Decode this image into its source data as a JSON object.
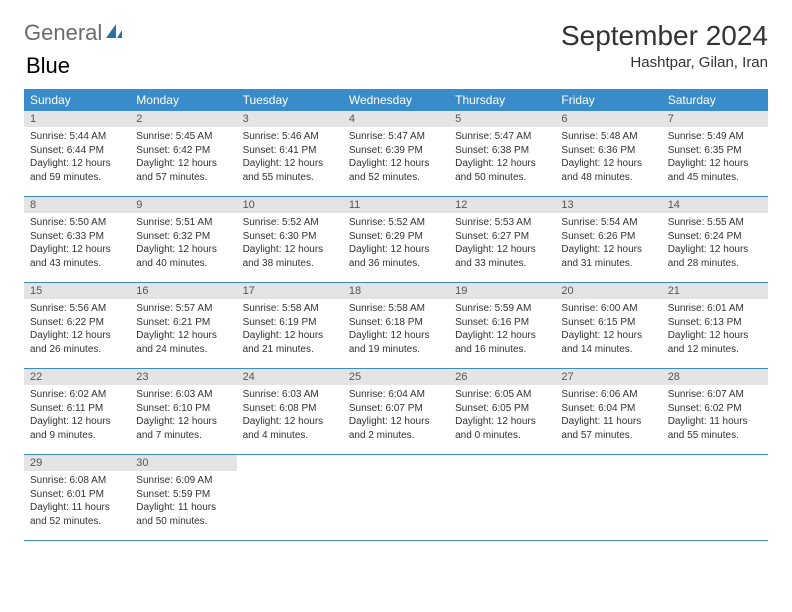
{
  "logo": {
    "word1": "General",
    "word2": "Blue"
  },
  "title": "September 2024",
  "location": "Hashtpar, Gilan, Iran",
  "colors": {
    "header_bg": "#3a8bc9",
    "header_text": "#ffffff",
    "daynum_bg": "#e4e4e4",
    "border": "#3a8bc9",
    "logo_gray": "#6b6b6b",
    "logo_blue": "#3a7fc4"
  },
  "weekdays": [
    "Sunday",
    "Monday",
    "Tuesday",
    "Wednesday",
    "Thursday",
    "Friday",
    "Saturday"
  ],
  "weeks": [
    [
      {
        "n": "1",
        "sr": "Sunrise: 5:44 AM",
        "ss": "Sunset: 6:44 PM",
        "d1": "Daylight: 12 hours",
        "d2": "and 59 minutes."
      },
      {
        "n": "2",
        "sr": "Sunrise: 5:45 AM",
        "ss": "Sunset: 6:42 PM",
        "d1": "Daylight: 12 hours",
        "d2": "and 57 minutes."
      },
      {
        "n": "3",
        "sr": "Sunrise: 5:46 AM",
        "ss": "Sunset: 6:41 PM",
        "d1": "Daylight: 12 hours",
        "d2": "and 55 minutes."
      },
      {
        "n": "4",
        "sr": "Sunrise: 5:47 AM",
        "ss": "Sunset: 6:39 PM",
        "d1": "Daylight: 12 hours",
        "d2": "and 52 minutes."
      },
      {
        "n": "5",
        "sr": "Sunrise: 5:47 AM",
        "ss": "Sunset: 6:38 PM",
        "d1": "Daylight: 12 hours",
        "d2": "and 50 minutes."
      },
      {
        "n": "6",
        "sr": "Sunrise: 5:48 AM",
        "ss": "Sunset: 6:36 PM",
        "d1": "Daylight: 12 hours",
        "d2": "and 48 minutes."
      },
      {
        "n": "7",
        "sr": "Sunrise: 5:49 AM",
        "ss": "Sunset: 6:35 PM",
        "d1": "Daylight: 12 hours",
        "d2": "and 45 minutes."
      }
    ],
    [
      {
        "n": "8",
        "sr": "Sunrise: 5:50 AM",
        "ss": "Sunset: 6:33 PM",
        "d1": "Daylight: 12 hours",
        "d2": "and 43 minutes."
      },
      {
        "n": "9",
        "sr": "Sunrise: 5:51 AM",
        "ss": "Sunset: 6:32 PM",
        "d1": "Daylight: 12 hours",
        "d2": "and 40 minutes."
      },
      {
        "n": "10",
        "sr": "Sunrise: 5:52 AM",
        "ss": "Sunset: 6:30 PM",
        "d1": "Daylight: 12 hours",
        "d2": "and 38 minutes."
      },
      {
        "n": "11",
        "sr": "Sunrise: 5:52 AM",
        "ss": "Sunset: 6:29 PM",
        "d1": "Daylight: 12 hours",
        "d2": "and 36 minutes."
      },
      {
        "n": "12",
        "sr": "Sunrise: 5:53 AM",
        "ss": "Sunset: 6:27 PM",
        "d1": "Daylight: 12 hours",
        "d2": "and 33 minutes."
      },
      {
        "n": "13",
        "sr": "Sunrise: 5:54 AM",
        "ss": "Sunset: 6:26 PM",
        "d1": "Daylight: 12 hours",
        "d2": "and 31 minutes."
      },
      {
        "n": "14",
        "sr": "Sunrise: 5:55 AM",
        "ss": "Sunset: 6:24 PM",
        "d1": "Daylight: 12 hours",
        "d2": "and 28 minutes."
      }
    ],
    [
      {
        "n": "15",
        "sr": "Sunrise: 5:56 AM",
        "ss": "Sunset: 6:22 PM",
        "d1": "Daylight: 12 hours",
        "d2": "and 26 minutes."
      },
      {
        "n": "16",
        "sr": "Sunrise: 5:57 AM",
        "ss": "Sunset: 6:21 PM",
        "d1": "Daylight: 12 hours",
        "d2": "and 24 minutes."
      },
      {
        "n": "17",
        "sr": "Sunrise: 5:58 AM",
        "ss": "Sunset: 6:19 PM",
        "d1": "Daylight: 12 hours",
        "d2": "and 21 minutes."
      },
      {
        "n": "18",
        "sr": "Sunrise: 5:58 AM",
        "ss": "Sunset: 6:18 PM",
        "d1": "Daylight: 12 hours",
        "d2": "and 19 minutes."
      },
      {
        "n": "19",
        "sr": "Sunrise: 5:59 AM",
        "ss": "Sunset: 6:16 PM",
        "d1": "Daylight: 12 hours",
        "d2": "and 16 minutes."
      },
      {
        "n": "20",
        "sr": "Sunrise: 6:00 AM",
        "ss": "Sunset: 6:15 PM",
        "d1": "Daylight: 12 hours",
        "d2": "and 14 minutes."
      },
      {
        "n": "21",
        "sr": "Sunrise: 6:01 AM",
        "ss": "Sunset: 6:13 PM",
        "d1": "Daylight: 12 hours",
        "d2": "and 12 minutes."
      }
    ],
    [
      {
        "n": "22",
        "sr": "Sunrise: 6:02 AM",
        "ss": "Sunset: 6:11 PM",
        "d1": "Daylight: 12 hours",
        "d2": "and 9 minutes."
      },
      {
        "n": "23",
        "sr": "Sunrise: 6:03 AM",
        "ss": "Sunset: 6:10 PM",
        "d1": "Daylight: 12 hours",
        "d2": "and 7 minutes."
      },
      {
        "n": "24",
        "sr": "Sunrise: 6:03 AM",
        "ss": "Sunset: 6:08 PM",
        "d1": "Daylight: 12 hours",
        "d2": "and 4 minutes."
      },
      {
        "n": "25",
        "sr": "Sunrise: 6:04 AM",
        "ss": "Sunset: 6:07 PM",
        "d1": "Daylight: 12 hours",
        "d2": "and 2 minutes."
      },
      {
        "n": "26",
        "sr": "Sunrise: 6:05 AM",
        "ss": "Sunset: 6:05 PM",
        "d1": "Daylight: 12 hours",
        "d2": "and 0 minutes."
      },
      {
        "n": "27",
        "sr": "Sunrise: 6:06 AM",
        "ss": "Sunset: 6:04 PM",
        "d1": "Daylight: 11 hours",
        "d2": "and 57 minutes."
      },
      {
        "n": "28",
        "sr": "Sunrise: 6:07 AM",
        "ss": "Sunset: 6:02 PM",
        "d1": "Daylight: 11 hours",
        "d2": "and 55 minutes."
      }
    ],
    [
      {
        "n": "29",
        "sr": "Sunrise: 6:08 AM",
        "ss": "Sunset: 6:01 PM",
        "d1": "Daylight: 11 hours",
        "d2": "and 52 minutes."
      },
      {
        "n": "30",
        "sr": "Sunrise: 6:09 AM",
        "ss": "Sunset: 5:59 PM",
        "d1": "Daylight: 11 hours",
        "d2": "and 50 minutes."
      },
      {
        "empty": true
      },
      {
        "empty": true
      },
      {
        "empty": true
      },
      {
        "empty": true
      },
      {
        "empty": true
      }
    ]
  ]
}
